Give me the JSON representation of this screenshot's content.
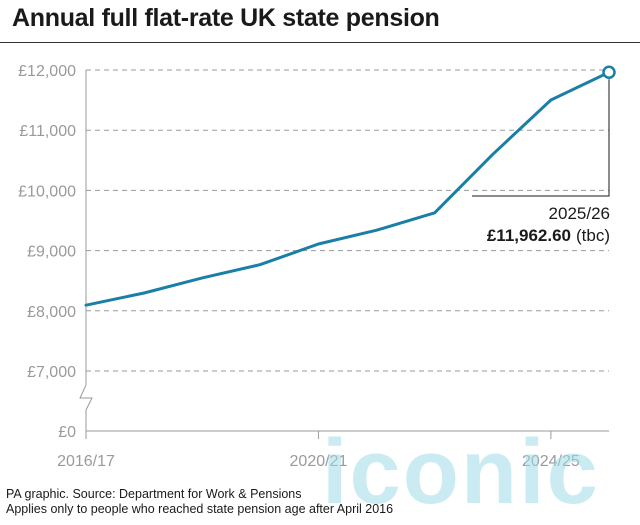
{
  "title": "Annual full flat-rate UK state pension",
  "chart_data": {
    "type": "line",
    "title": "Annual full flat-rate UK state pension",
    "xlabel": "",
    "ylabel": "",
    "x_labels_shown": [
      "2016/17",
      "2020/21",
      "2024/25"
    ],
    "x": [
      "2016/17",
      "2017/18",
      "2018/19",
      "2019/20",
      "2020/21",
      "2021/22",
      "2022/23",
      "2023/24",
      "2024/25",
      "2025/26"
    ],
    "series": [
      {
        "values": [
          8093.6,
          8296.4,
          8546.2,
          8767.2,
          9110.4,
          9339.2,
          9627.8,
          10600.2,
          11502.4,
          11962.6
        ]
      }
    ],
    "y_ticks": [
      0,
      7000,
      8000,
      9000,
      10000,
      11000,
      12000
    ],
    "y_tick_labels": [
      "£0",
      "£7,000",
      "£8,000",
      "£9,000",
      "£10,000",
      "£11,000",
      "£12,000"
    ],
    "ylim": [
      7000,
      12000
    ],
    "y_axis_break": "between £0 and £7,000",
    "grid": "horizontal dashed",
    "line_color": "#1a7fa8",
    "annotation": {
      "label_year": "2025/26",
      "label_value": "£11,962.60",
      "label_note": "(tbc)"
    }
  },
  "footer": {
    "line1": "PA graphic. Source: Department for Work & Pensions",
    "line2": "Applies only to people who reached state pension age after April 2016"
  },
  "watermark": "iconic"
}
